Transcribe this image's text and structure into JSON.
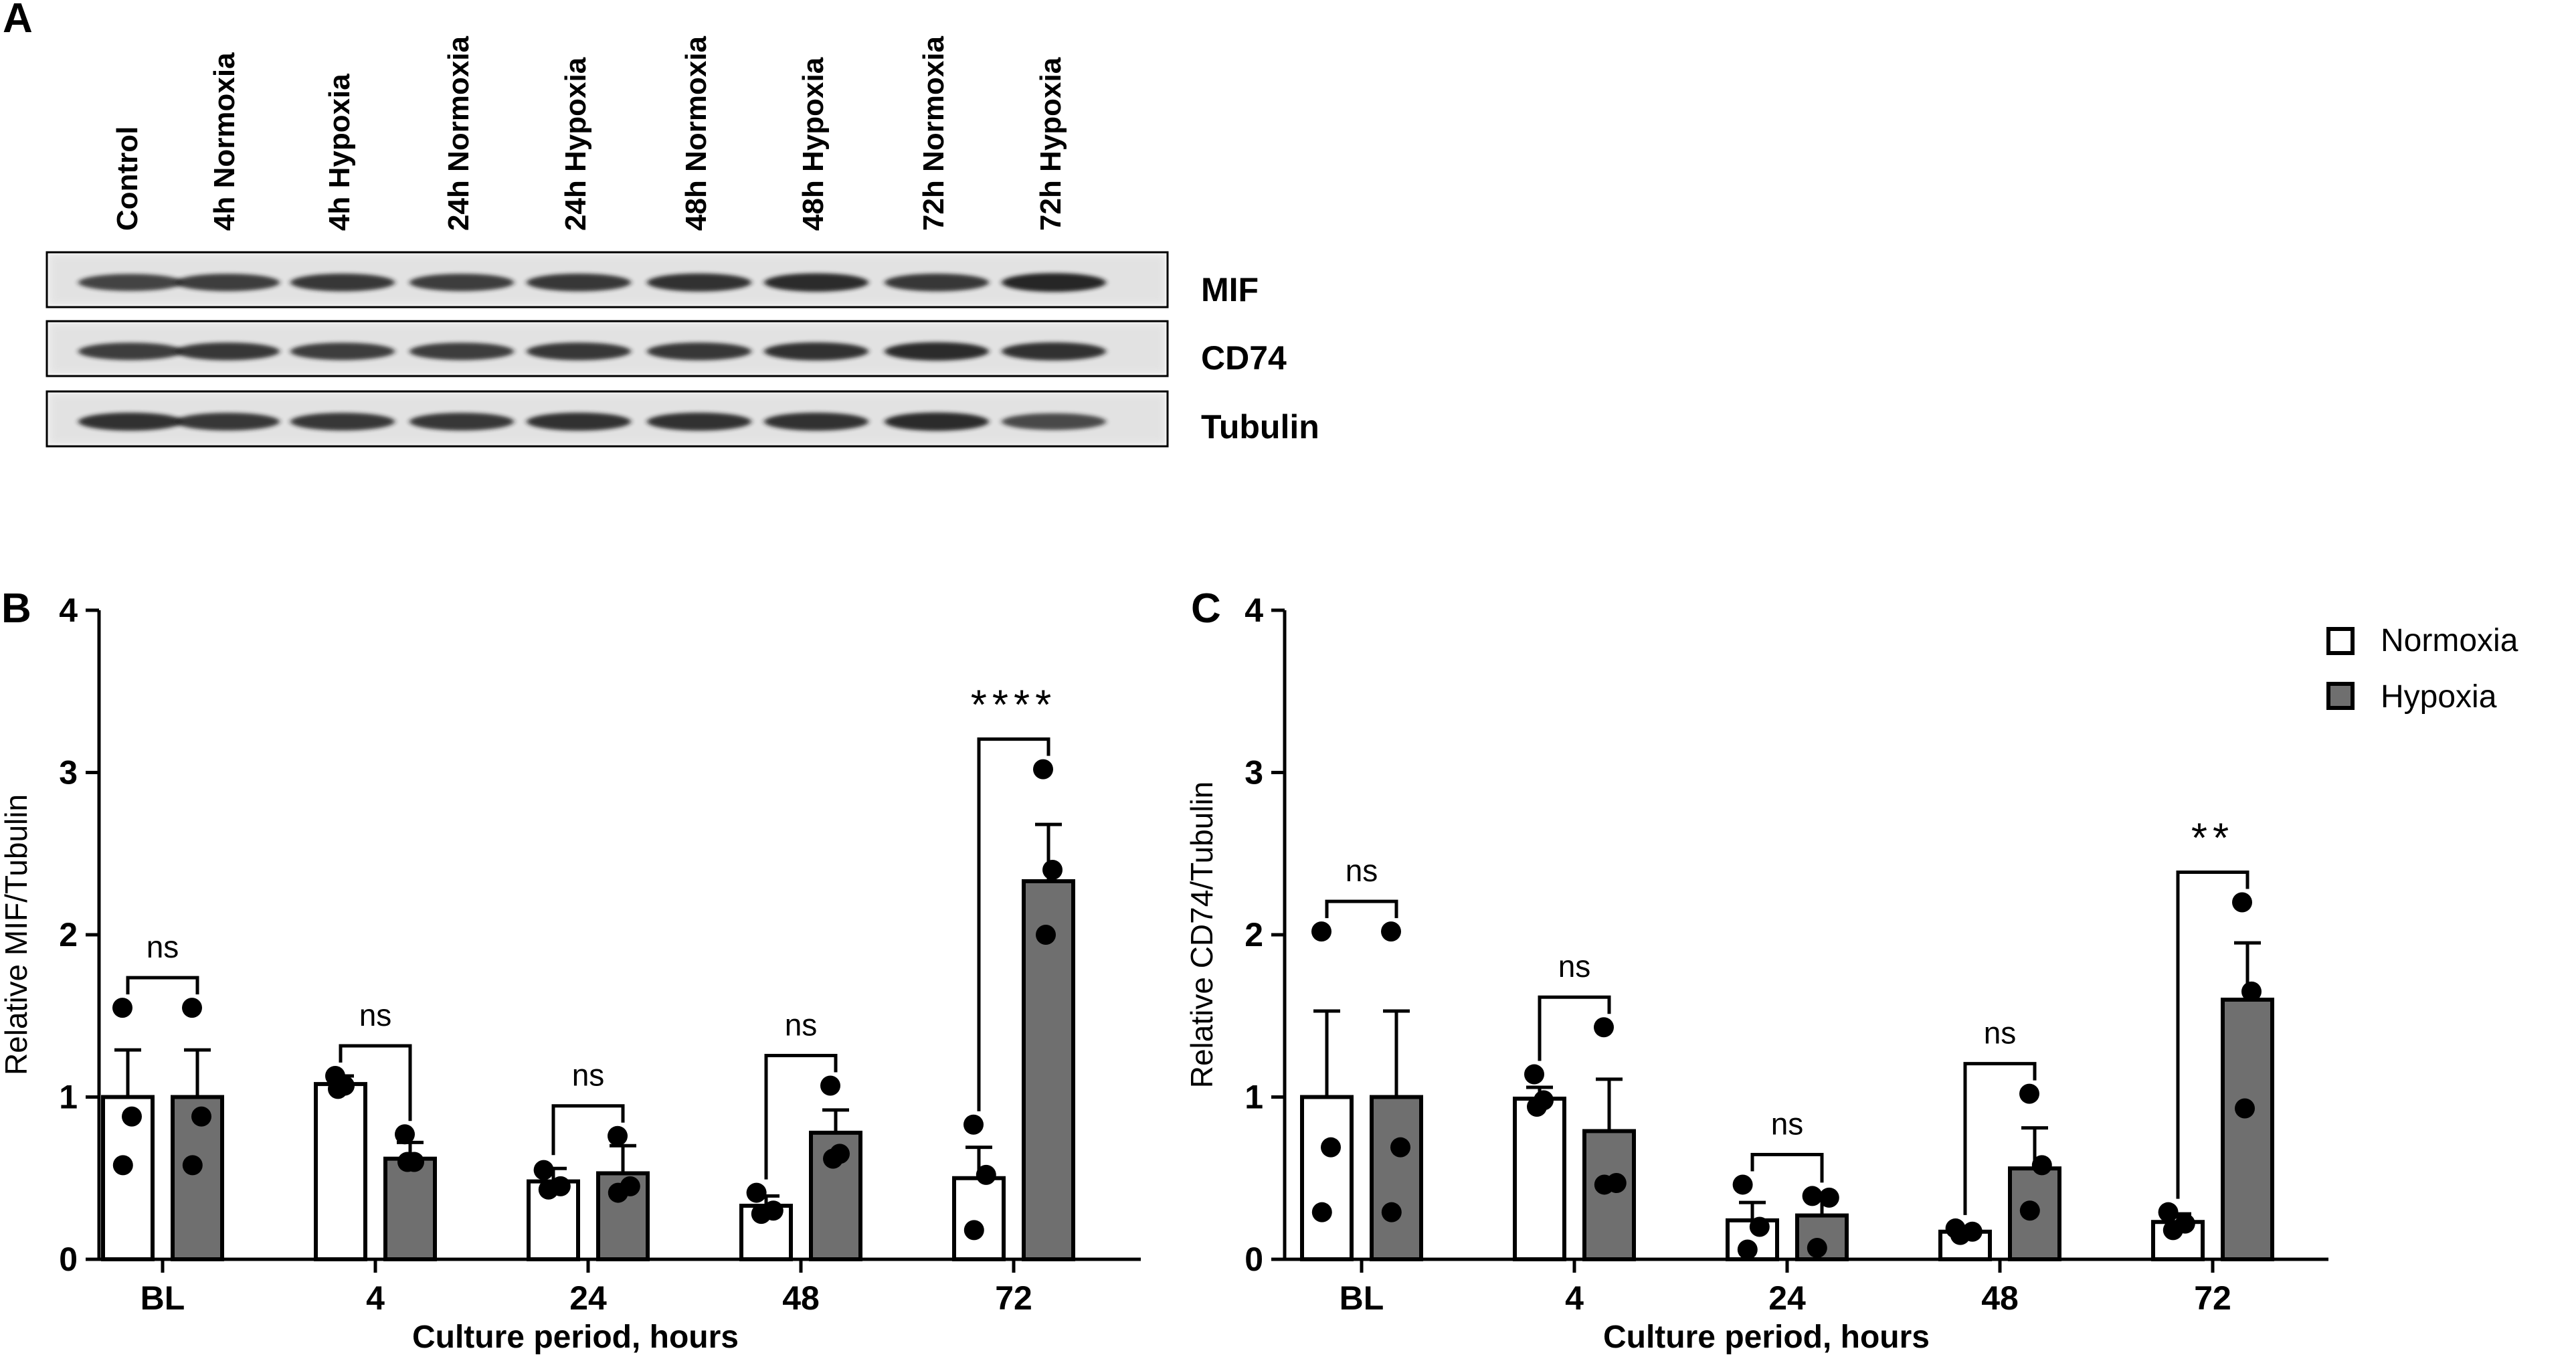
{
  "panel_a": {
    "label": "A",
    "lanes": [
      "Control",
      "4h Normoxia",
      "4h Hypoxia",
      "24h Normoxia",
      "24h Hypoxia",
      "48h Normoxia",
      "48h Hypoxia",
      "72h Normoxia",
      "72h Hypoxia"
    ],
    "blots": [
      {
        "name": "MIF",
        "intensity": [
          0.75,
          0.8,
          0.85,
          0.8,
          0.85,
          0.9,
          0.95,
          0.85,
          1.0
        ]
      },
      {
        "name": "CD74",
        "intensity": [
          0.8,
          0.85,
          0.8,
          0.8,
          0.85,
          0.85,
          0.9,
          0.95,
          0.9
        ]
      },
      {
        "name": "Tubulin",
        "intensity": [
          0.9,
          0.85,
          0.85,
          0.85,
          0.9,
          0.9,
          0.9,
          0.95,
          0.7
        ]
      }
    ]
  },
  "legend": {
    "entries": [
      {
        "name": "Normoxia",
        "color": "#ffffff"
      },
      {
        "name": "Hypoxia",
        "color": "#6f6f6f"
      }
    ],
    "placement": "top-right"
  },
  "colors": {
    "normoxia": "#ffffff",
    "hypoxia": "#6f6f6f",
    "axis": "#000000"
  },
  "chart_data": [
    {
      "panel": "B",
      "type": "bar",
      "xlabel": "Culture period, hours",
      "ylabel": "Relative MIF/Tubulin",
      "ylim": [
        0,
        4
      ],
      "yticks": [
        "0",
        "1",
        "2",
        "3",
        "4"
      ],
      "categories": [
        "BL",
        "4",
        "24",
        "48",
        "72"
      ],
      "series": [
        {
          "name": "Normoxia",
          "values": [
            1.0,
            1.08,
            0.48,
            0.33,
            0.5
          ],
          "errors": [
            0.29,
            0.05,
            0.08,
            0.06,
            0.19
          ],
          "points": [
            [
              1.55,
              0.88,
              0.58
            ],
            [
              1.13,
              1.07,
              1.05
            ],
            [
              0.55,
              0.45,
              0.43
            ],
            [
              0.41,
              0.3,
              0.28
            ],
            [
              0.83,
              0.52,
              0.18
            ]
          ]
        },
        {
          "name": "Hypoxia",
          "values": [
            1.0,
            0.62,
            0.53,
            0.78,
            2.33
          ],
          "errors": [
            0.29,
            0.1,
            0.17,
            0.14,
            0.35
          ],
          "points": [
            [
              1.55,
              0.88,
              0.58
            ],
            [
              0.77,
              0.6,
              0.6
            ],
            [
              0.76,
              0.45,
              0.41
            ],
            [
              1.07,
              0.65,
              0.62
            ],
            [
              3.02,
              2.4,
              2.0
            ]
          ]
        }
      ],
      "significance": [
        "ns",
        "ns",
        "ns",
        "ns",
        "****"
      ]
    },
    {
      "panel": "C",
      "type": "bar",
      "xlabel": "Culture period, hours",
      "ylabel": "Relative CD74/Tubulin",
      "ylim": [
        0,
        4
      ],
      "yticks": [
        "0",
        "1",
        "2",
        "3",
        "4"
      ],
      "categories": [
        "BL",
        "4",
        "24",
        "48",
        "72"
      ],
      "series": [
        {
          "name": "Normoxia",
          "values": [
            1.0,
            0.99,
            0.24,
            0.17,
            0.23
          ],
          "errors": [
            0.53,
            0.07,
            0.11,
            0.02,
            0.05
          ],
          "points": [
            [
              2.02,
              0.69,
              0.29
            ],
            [
              1.14,
              0.98,
              0.94
            ],
            [
              0.46,
              0.2,
              0.06
            ],
            [
              0.19,
              0.17,
              0.15
            ],
            [
              0.29,
              0.22,
              0.18
            ]
          ]
        },
        {
          "name": "Hypoxia",
          "values": [
            1.0,
            0.79,
            0.27,
            0.56,
            1.6
          ],
          "errors": [
            0.53,
            0.32,
            0.11,
            0.25,
            0.35
          ],
          "points": [
            [
              2.02,
              0.69,
              0.29
            ],
            [
              1.43,
              0.47,
              0.46
            ],
            [
              0.39,
              0.38,
              0.07
            ],
            [
              1.02,
              0.58,
              0.3
            ],
            [
              2.2,
              1.65,
              0.93
            ]
          ]
        }
      ],
      "significance": [
        "ns",
        "ns",
        "ns",
        "ns",
        "**"
      ]
    }
  ]
}
